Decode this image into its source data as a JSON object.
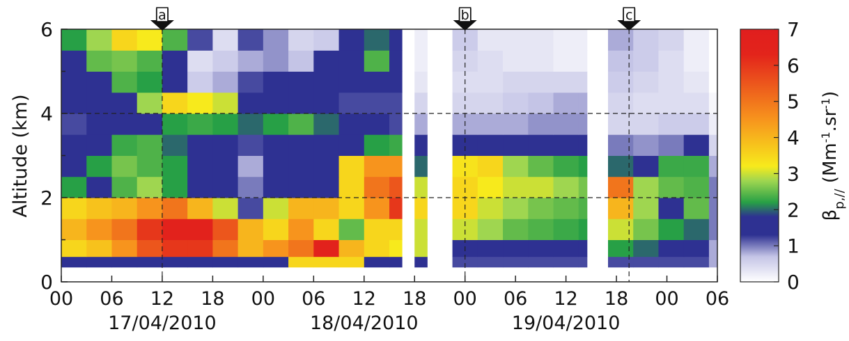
{
  "chart_data": {
    "type": "heatmap",
    "ylabel": "Altitude (km)",
    "x_edges": [
      0,
      3,
      6,
      9,
      12,
      15,
      18,
      21,
      24,
      27,
      30,
      33,
      36,
      39,
      40.5,
      42,
      43.5,
      46.5,
      49.5,
      52.5,
      55.5,
      58.5,
      61.5,
      62.5,
      65,
      68,
      71,
      74,
      77,
      78
    ],
    "y_edges": [
      0,
      0.35,
      0.6,
      1,
      1.5,
      2,
      2.5,
      3,
      3.5,
      4,
      4.5,
      5,
      5.5,
      6
    ],
    "z": [
      [
        0,
        0,
        0,
        0,
        0,
        0,
        0,
        0,
        0,
        0,
        0,
        0,
        0,
        0,
        null,
        0,
        null,
        0,
        0,
        0,
        0,
        0,
        0,
        null,
        0,
        0,
        0,
        0,
        0
      ],
      [
        1.6,
        1.6,
        1.6,
        1.6,
        1.6,
        1.6,
        1.6,
        1.6,
        1.6,
        3.5,
        3.5,
        3.5,
        1.6,
        1.6,
        null,
        1.6,
        null,
        1.2,
        1.2,
        1.2,
        1.2,
        1.2,
        1.2,
        null,
        1.2,
        1.2,
        1.2,
        1.2,
        0.8
      ],
      [
        3.5,
        3.8,
        4.5,
        5.5,
        6,
        6,
        5,
        4,
        4.5,
        5,
        6.5,
        4,
        3.5,
        3.2,
        null,
        3,
        null,
        1.6,
        1.6,
        1.5,
        1.4,
        1.4,
        1.5,
        null,
        2.2,
        2,
        1.8,
        1.5,
        0.8
      ],
      [
        4,
        4.5,
        5,
        6,
        6.5,
        6.5,
        5.5,
        4,
        3.5,
        4.5,
        3.5,
        2.5,
        3.5,
        3.5,
        null,
        3,
        null,
        3,
        2.8,
        2.5,
        2.4,
        2.3,
        2.2,
        null,
        3,
        2.6,
        2.2,
        2,
        1
      ],
      [
        3.5,
        3.8,
        4,
        4.5,
        5,
        4,
        3,
        1.2,
        3,
        4,
        4,
        3.5,
        4.5,
        6,
        null,
        3.5,
        null,
        3.5,
        3,
        2.8,
        2.6,
        2.5,
        2.4,
        null,
        4,
        2.8,
        1.5,
        2.5,
        1
      ],
      [
        2.2,
        1.8,
        2.4,
        2.8,
        2.2,
        1.6,
        1.4,
        1,
        1.5,
        1.6,
        1.8,
        3.5,
        5,
        5.5,
        null,
        3,
        null,
        3.5,
        3.2,
        3,
        3,
        2.8,
        2.6,
        null,
        5,
        2.8,
        2.5,
        2.4,
        1
      ],
      [
        1.8,
        2.2,
        2.6,
        2.4,
        2.2,
        1.8,
        1.4,
        0.8,
        1.5,
        1.6,
        1.8,
        3.5,
        4.5,
        4.5,
        null,
        2,
        null,
        3.3,
        3.5,
        2.8,
        2.5,
        2.3,
        2.2,
        null,
        2,
        1.5,
        2.3,
        2.3,
        0.8
      ],
      [
        1.4,
        1.5,
        2.3,
        2.4,
        2,
        1.6,
        1.4,
        1.2,
        1.4,
        1.3,
        1.3,
        1.4,
        2.2,
        2.3,
        null,
        1.8,
        null,
        1.7,
        1.8,
        1.7,
        1.7,
        1.6,
        1.6,
        null,
        1,
        0.9,
        1,
        1.5,
        0.5
      ],
      [
        1.2,
        1.4,
        1.6,
        1.8,
        2.2,
        2.3,
        2.2,
        2,
        2.2,
        2.4,
        2,
        1.5,
        1.4,
        1.2,
        null,
        0.8,
        null,
        0.8,
        0.8,
        0.8,
        0.9,
        0.9,
        0.9,
        null,
        0.5,
        0.5,
        0.6,
        0.6,
        0.2
      ],
      [
        1.3,
        1.4,
        1.8,
        2.8,
        3.5,
        3.2,
        3,
        1.6,
        1.4,
        1.4,
        1.3,
        1.2,
        1.2,
        1.2,
        null,
        0.5,
        null,
        0.5,
        0.5,
        0.6,
        0.7,
        0.8,
        0.8,
        null,
        0.5,
        0.4,
        0.4,
        0.4,
        0.1
      ],
      [
        1.4,
        1.6,
        2.4,
        2.2,
        1.6,
        0.6,
        0.8,
        1.2,
        1.5,
        1.4,
        1.3,
        1.4,
        1.6,
        1.5,
        null,
        0.3,
        null,
        0.4,
        0.4,
        0.5,
        0.5,
        0.5,
        0.5,
        null,
        0.6,
        0.5,
        0.4,
        0.3,
        0
      ],
      [
        1.5,
        2.5,
        2.6,
        2.4,
        1.4,
        0.4,
        0.6,
        0.8,
        0.9,
        0.7,
        1.3,
        1.6,
        2.4,
        1.6,
        null,
        0.2,
        null,
        0.5,
        0.4,
        0.3,
        0.3,
        0.2,
        0.2,
        null,
        0.7,
        0.6,
        0.4,
        0.2,
        0
      ],
      [
        2.2,
        2.8,
        3.5,
        3.2,
        2.4,
        1.2,
        0.4,
        1.2,
        0.9,
        0.5,
        0.6,
        1.4,
        2,
        1.6,
        null,
        0.2,
        null,
        0.6,
        0.3,
        0.3,
        0.3,
        0.2,
        0.2,
        null,
        0.8,
        0.6,
        0.5,
        0.2,
        0
      ]
    ],
    "xlim": [
      0,
      78
    ],
    "ylim": [
      0,
      6
    ],
    "xticks": [
      {
        "value": 0,
        "label": "00"
      },
      {
        "value": 6,
        "label": "06"
      },
      {
        "value": 12,
        "label": "12"
      },
      {
        "value": 18,
        "label": "18"
      },
      {
        "value": 24,
        "label": "00"
      },
      {
        "value": 30,
        "label": "06"
      },
      {
        "value": 36,
        "label": "12"
      },
      {
        "value": 42,
        "label": "18"
      },
      {
        "value": 48,
        "label": "00"
      },
      {
        "value": 54,
        "label": "06"
      },
      {
        "value": 60,
        "label": "12"
      },
      {
        "value": 66,
        "label": "18"
      },
      {
        "value": 72,
        "label": "00"
      },
      {
        "value": 78,
        "label": "06"
      }
    ],
    "date_ticks": [
      {
        "value": 12,
        "label": "17/04/2010"
      },
      {
        "value": 36,
        "label": "18/04/2010"
      },
      {
        "value": 60,
        "label": "19/04/2010"
      }
    ],
    "yticks": [
      0,
      2,
      4,
      6
    ],
    "y_minor_ticks": [
      1,
      3,
      5
    ],
    "dashed_y": [
      2,
      4
    ],
    "annotations": [
      {
        "x": 12,
        "label": "a"
      },
      {
        "x": 48,
        "label": "b"
      },
      {
        "x": 67.5,
        "label": "c"
      }
    ],
    "colorscale": [
      [
        0,
        "#ffffff"
      ],
      [
        0.7,
        "#c4c4e6"
      ],
      [
        1.3,
        "#2e3192"
      ],
      [
        1.8,
        "#2e3192"
      ],
      [
        2.2,
        "#27a046"
      ],
      [
        2.8,
        "#9fd650"
      ],
      [
        3.2,
        "#f7ea1c"
      ],
      [
        4.5,
        "#f7941d"
      ],
      [
        6.3,
        "#e3241b"
      ],
      [
        7,
        "#e01e1e"
      ]
    ],
    "clim": [
      0,
      7
    ],
    "cticks": [
      0,
      1,
      2,
      3,
      4,
      5,
      6,
      7
    ],
    "colorbar_label": [
      {
        "text": "β"
      },
      {
        "text": "p,//",
        "style": "sub"
      },
      {
        "text": " (Mm"
      },
      {
        "text": "-1",
        "style": "sup"
      },
      {
        "text": ".sr"
      },
      {
        "text": "-1",
        "style": "sup"
      },
      {
        "text": ")"
      }
    ]
  }
}
